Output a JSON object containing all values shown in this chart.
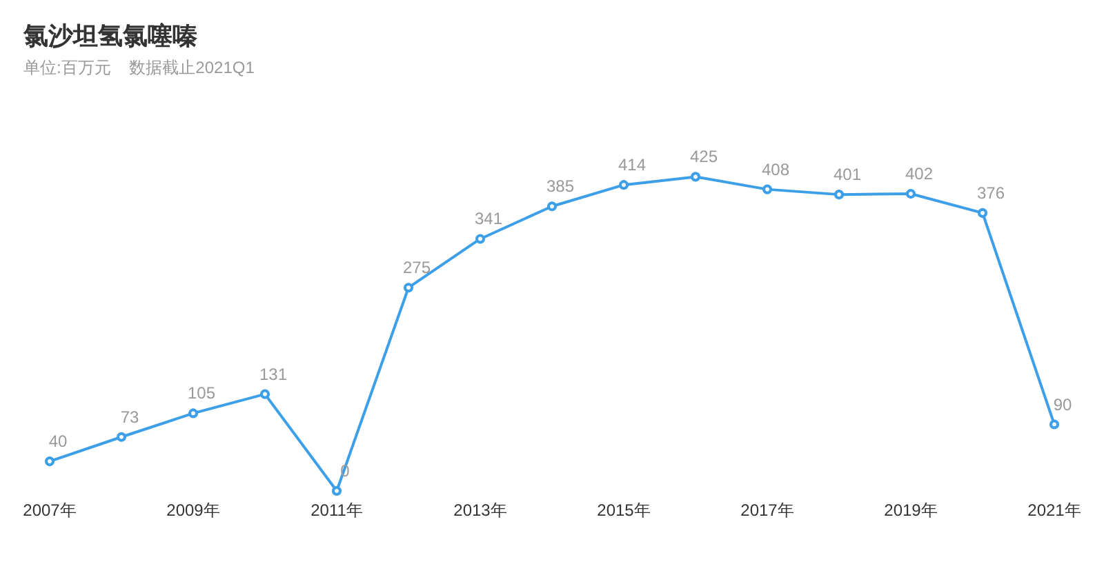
{
  "chart_data": {
    "type": "line",
    "title": "氯沙坦氢氯噻嗪",
    "subtitle": "单位:百万元    数据截止2021Q1",
    "categories": [
      "2007年",
      null,
      "2009年",
      null,
      "2011年",
      null,
      "2013年",
      null,
      "2015年",
      null,
      "2017年",
      null,
      "2019年",
      null,
      "2021年"
    ],
    "series": [
      {
        "color": "#3d9fe8",
        "values": [
          40,
          73,
          105,
          131,
          0,
          275,
          341,
          385,
          414,
          425,
          408,
          401,
          402,
          376,
          90
        ]
      }
    ],
    "data_labels": true,
    "marker": "circle",
    "line_style": "solid"
  }
}
